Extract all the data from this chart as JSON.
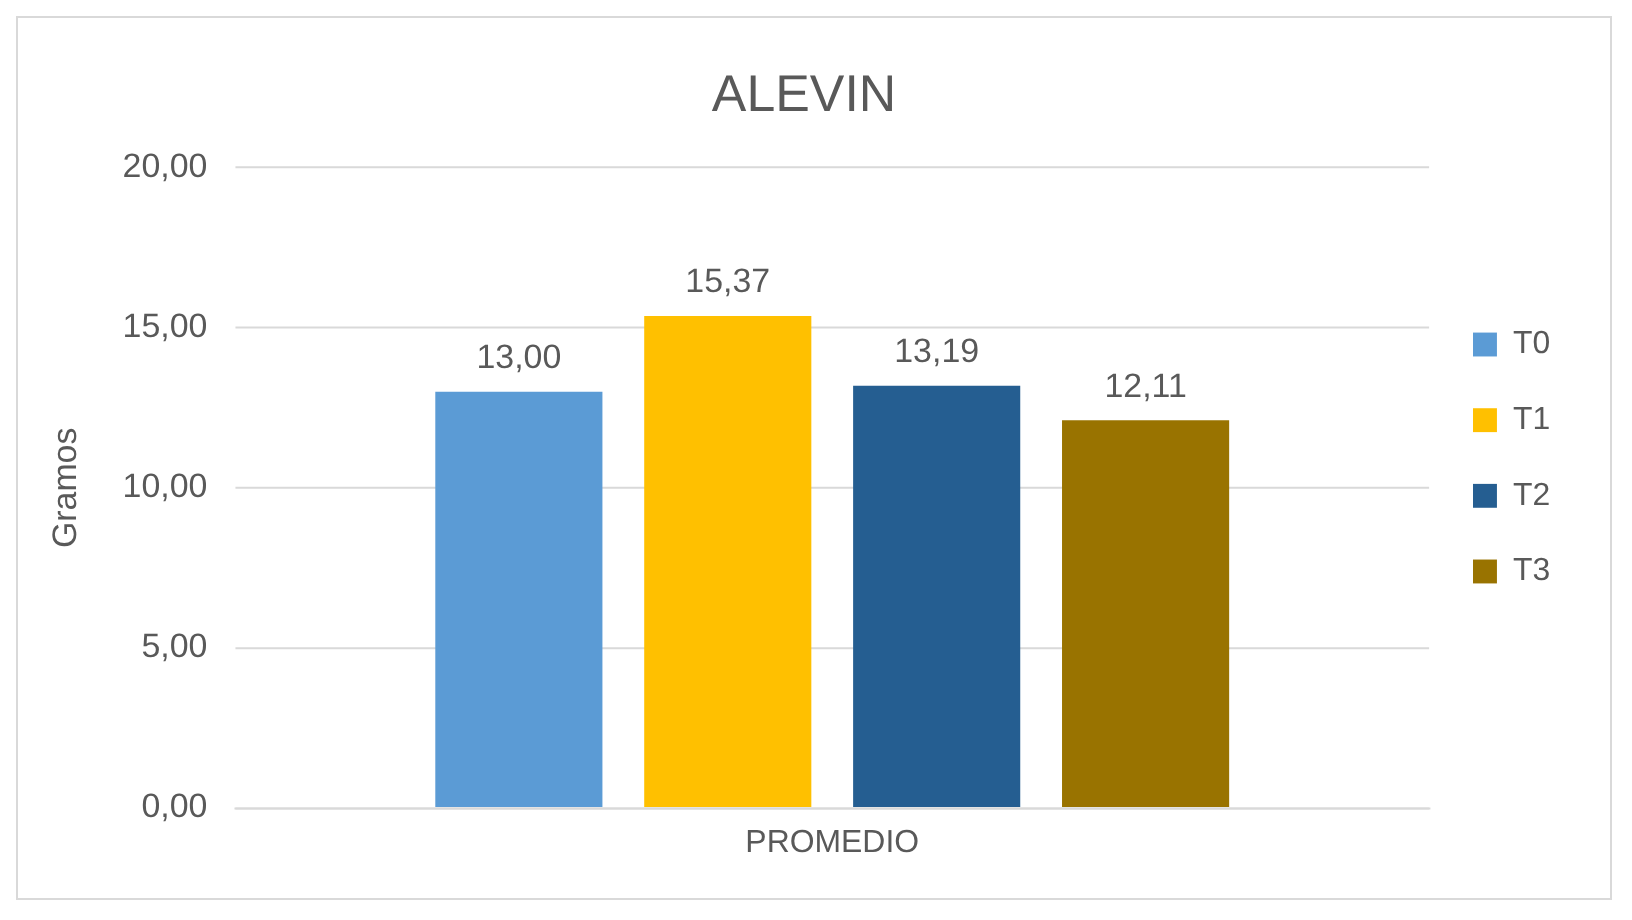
{
  "chart_data": {
    "type": "bar",
    "title": "ALEVIN",
    "ylabel": "Gramos",
    "categories": [
      "PROMEDIO"
    ],
    "series": [
      {
        "name": "T0",
        "color": "#5b9bd5",
        "values": [
          13.0
        ],
        "value_labels": [
          "13,00"
        ]
      },
      {
        "name": "T1",
        "color": "#ffc000",
        "values": [
          15.37
        ],
        "value_labels": [
          "15,37"
        ]
      },
      {
        "name": "T2",
        "color": "#255e91",
        "values": [
          13.19
        ],
        "value_labels": [
          "13,19"
        ]
      },
      {
        "name": "T3",
        "color": "#997300",
        "values": [
          12.11
        ],
        "value_labels": [
          "12,11"
        ]
      }
    ],
    "ylim": [
      0,
      20
    ],
    "yticks": [
      {
        "value": 0,
        "label": "0,00"
      },
      {
        "value": 5,
        "label": "5,00"
      },
      {
        "value": 10,
        "label": "10,00"
      },
      {
        "value": 15,
        "label": "15,00"
      },
      {
        "value": 20,
        "label": "20,00"
      }
    ],
    "grid": "y",
    "legend": "right"
  }
}
